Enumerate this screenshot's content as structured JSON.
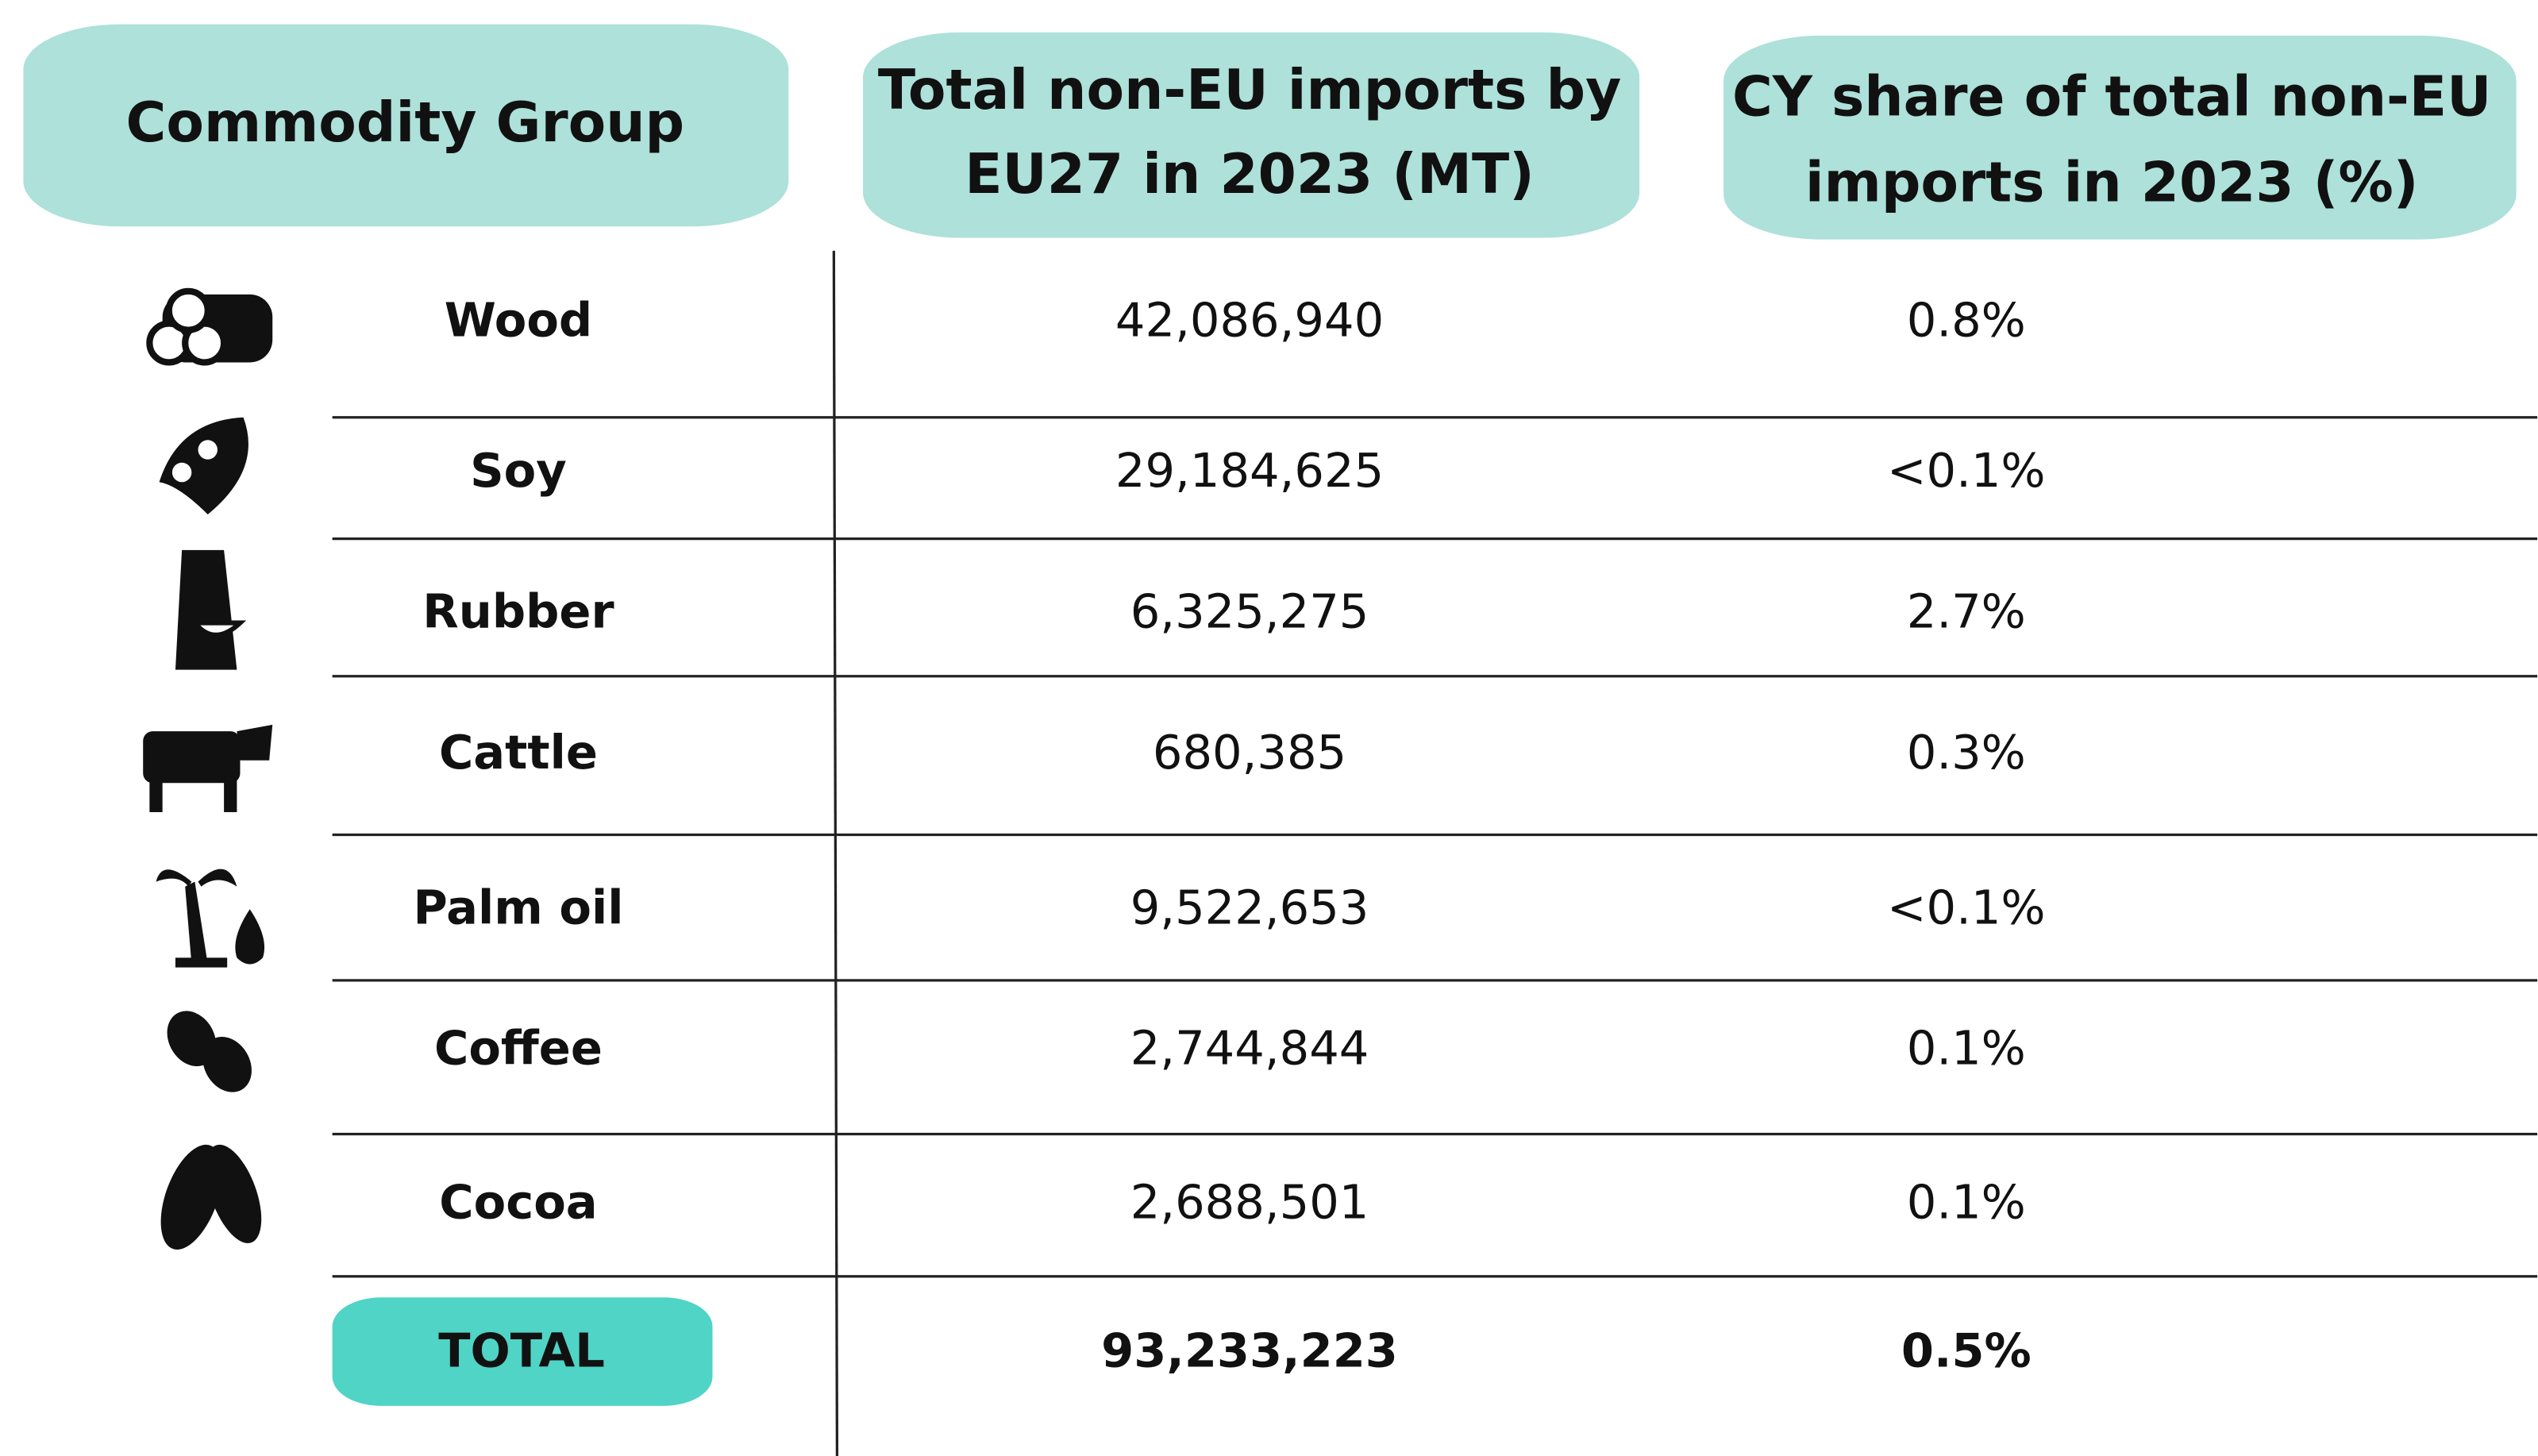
{
  "table": {
    "headers": [
      [
        "Commodity Group"
      ],
      [
        "Total non-EU imports by",
        "EU27 in 2023 (MT)"
      ],
      [
        "CY share of total non-EU",
        "imports in 2023 (%)"
      ]
    ],
    "rows": [
      [
        "Wood",
        "42,086,940",
        "0.8%"
      ],
      [
        "Soy",
        "29,184,625",
        "<0.1%"
      ],
      [
        "Rubber",
        "6,325,275",
        "2.7%"
      ],
      [
        "Cattle",
        "680,385",
        "0.3%"
      ],
      [
        "Palm oil",
        "9,522,653",
        "<0.1%"
      ],
      [
        "Coffee",
        "2,744,844",
        "0.1%"
      ],
      [
        "Cocoa",
        "2,688,501",
        "0.1%"
      ]
    ],
    "total": [
      "TOTAL",
      "93,233,223",
      "0.5%"
    ]
  }
}
